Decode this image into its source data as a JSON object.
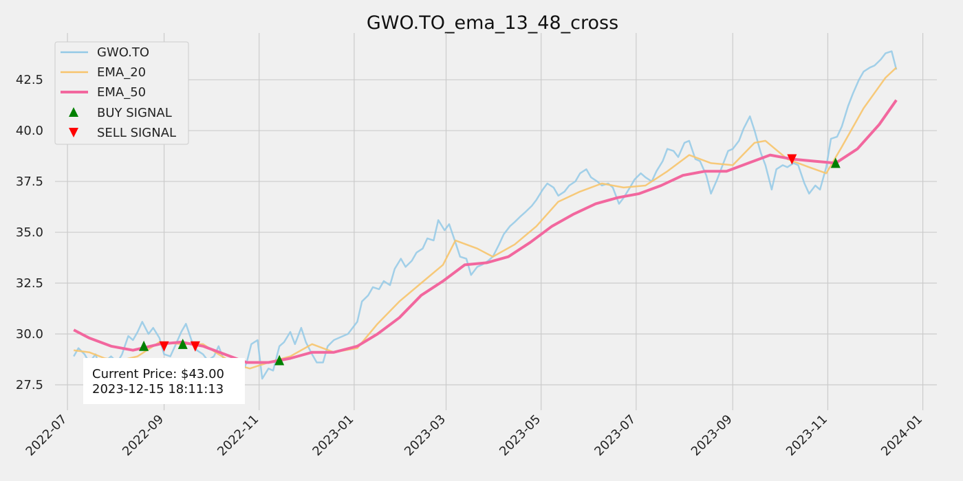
{
  "chart_data": {
    "type": "line",
    "title": "GWO.TO_ema_13_48_cross",
    "xlabel": "",
    "ylabel": "",
    "grid": true,
    "legend_position": "top-left",
    "x_ticks": [
      "2022-07",
      "2022-09",
      "2022-11",
      "2023-01",
      "2023-03",
      "2023-05",
      "2023-07",
      "2023-09",
      "2023-11",
      "2024-01"
    ],
    "y_ticks": [
      "27.5",
      "30.0",
      "32.5",
      "35.0",
      "37.5",
      "40.0",
      "42.5"
    ],
    "xlim": [
      "2022-06-23",
      "2024-01-10"
    ],
    "ylim": [
      26.25,
      44.8
    ],
    "series": [
      {
        "name": "GWO.TO",
        "color": "#93c9e6",
        "points": [
          [
            "2022-07-05",
            28.9
          ],
          [
            "2022-07-08",
            29.3
          ],
          [
            "2022-07-12",
            29.0
          ],
          [
            "2022-07-15",
            28.6
          ],
          [
            "2022-07-19",
            29.0
          ],
          [
            "2022-07-22",
            28.3
          ],
          [
            "2022-07-26",
            28.7
          ],
          [
            "2022-07-29",
            28.9
          ],
          [
            "2022-08-02",
            28.6
          ],
          [
            "2022-08-05",
            29.0
          ],
          [
            "2022-08-09",
            29.9
          ],
          [
            "2022-08-12",
            29.7
          ],
          [
            "2022-08-15",
            30.1
          ],
          [
            "2022-08-18",
            30.6
          ],
          [
            "2022-08-22",
            30.0
          ],
          [
            "2022-08-25",
            30.3
          ],
          [
            "2022-08-29",
            29.8
          ],
          [
            "2022-09-01",
            29.0
          ],
          [
            "2022-09-05",
            28.9
          ],
          [
            "2022-09-08",
            29.4
          ],
          [
            "2022-09-12",
            30.1
          ],
          [
            "2022-09-15",
            30.5
          ],
          [
            "2022-09-19",
            29.6
          ],
          [
            "2022-09-22",
            29.2
          ],
          [
            "2022-09-26",
            29.0
          ],
          [
            "2022-09-29",
            28.7
          ],
          [
            "2022-10-03",
            28.9
          ],
          [
            "2022-10-06",
            29.4
          ],
          [
            "2022-10-10",
            28.6
          ],
          [
            "2022-10-13",
            27.9
          ],
          [
            "2022-10-17",
            27.7
          ],
          [
            "2022-10-20",
            27.9
          ],
          [
            "2022-10-24",
            28.6
          ],
          [
            "2022-10-27",
            29.5
          ],
          [
            "2022-10-31",
            29.7
          ],
          [
            "2022-11-03",
            27.8
          ],
          [
            "2022-11-07",
            28.3
          ],
          [
            "2022-11-10",
            28.2
          ],
          [
            "2022-11-14",
            29.4
          ],
          [
            "2022-11-17",
            29.6
          ],
          [
            "2022-11-21",
            30.1
          ],
          [
            "2022-11-24",
            29.5
          ],
          [
            "2022-11-28",
            30.3
          ],
          [
            "2022-12-01",
            29.6
          ],
          [
            "2022-12-05",
            29.0
          ],
          [
            "2022-12-08",
            28.6
          ],
          [
            "2022-12-12",
            28.6
          ],
          [
            "2022-12-15",
            29.4
          ],
          [
            "2022-12-19",
            29.7
          ],
          [
            "2022-12-22",
            29.8
          ],
          [
            "2022-12-28",
            30.0
          ],
          [
            "2023-01-03",
            30.6
          ],
          [
            "2023-01-06",
            31.6
          ],
          [
            "2023-01-10",
            31.9
          ],
          [
            "2023-01-13",
            32.3
          ],
          [
            "2023-01-17",
            32.2
          ],
          [
            "2023-01-20",
            32.6
          ],
          [
            "2023-01-24",
            32.4
          ],
          [
            "2023-01-27",
            33.2
          ],
          [
            "2023-01-31",
            33.7
          ],
          [
            "2023-02-03",
            33.3
          ],
          [
            "2023-02-07",
            33.6
          ],
          [
            "2023-02-10",
            34.0
          ],
          [
            "2023-02-14",
            34.2
          ],
          [
            "2023-02-17",
            34.7
          ],
          [
            "2023-02-21",
            34.6
          ],
          [
            "2023-02-24",
            35.6
          ],
          [
            "2023-02-28",
            35.1
          ],
          [
            "2023-03-03",
            35.4
          ],
          [
            "2023-03-07",
            34.5
          ],
          [
            "2023-03-10",
            33.8
          ],
          [
            "2023-03-14",
            33.7
          ],
          [
            "2023-03-17",
            32.9
          ],
          [
            "2023-03-21",
            33.3
          ],
          [
            "2023-03-24",
            33.4
          ],
          [
            "2023-03-28",
            33.6
          ],
          [
            "2023-03-31",
            33.8
          ],
          [
            "2023-04-04",
            34.4
          ],
          [
            "2023-04-07",
            34.9
          ],
          [
            "2023-04-11",
            35.3
          ],
          [
            "2023-04-14",
            35.5
          ],
          [
            "2023-04-18",
            35.8
          ],
          [
            "2023-04-21",
            36.0
          ],
          [
            "2023-04-25",
            36.3
          ],
          [
            "2023-04-28",
            36.6
          ],
          [
            "2023-05-02",
            37.1
          ],
          [
            "2023-05-05",
            37.4
          ],
          [
            "2023-05-09",
            37.2
          ],
          [
            "2023-05-12",
            36.8
          ],
          [
            "2023-05-16",
            37.0
          ],
          [
            "2023-05-19",
            37.3
          ],
          [
            "2023-05-23",
            37.5
          ],
          [
            "2023-05-26",
            37.9
          ],
          [
            "2023-05-30",
            38.1
          ],
          [
            "2023-06-02",
            37.7
          ],
          [
            "2023-06-06",
            37.5
          ],
          [
            "2023-06-09",
            37.3
          ],
          [
            "2023-06-13",
            37.4
          ],
          [
            "2023-06-16",
            37.2
          ],
          [
            "2023-06-20",
            36.4
          ],
          [
            "2023-06-23",
            36.7
          ],
          [
            "2023-06-27",
            37.2
          ],
          [
            "2023-06-30",
            37.6
          ],
          [
            "2023-07-04",
            37.9
          ],
          [
            "2023-07-07",
            37.7
          ],
          [
            "2023-07-11",
            37.5
          ],
          [
            "2023-07-14",
            38.0
          ],
          [
            "2023-07-18",
            38.5
          ],
          [
            "2023-07-21",
            39.1
          ],
          [
            "2023-07-25",
            39.0
          ],
          [
            "2023-07-28",
            38.7
          ],
          [
            "2023-08-01",
            39.4
          ],
          [
            "2023-08-04",
            39.5
          ],
          [
            "2023-08-08",
            38.6
          ],
          [
            "2023-08-11",
            38.5
          ],
          [
            "2023-08-15",
            37.8
          ],
          [
            "2023-08-18",
            36.9
          ],
          [
            "2023-08-22",
            37.6
          ],
          [
            "2023-08-25",
            38.2
          ],
          [
            "2023-08-29",
            39.0
          ],
          [
            "2023-09-01",
            39.1
          ],
          [
            "2023-09-05",
            39.5
          ],
          [
            "2023-09-08",
            40.1
          ],
          [
            "2023-09-12",
            40.7
          ],
          [
            "2023-09-15",
            40.0
          ],
          [
            "2023-09-19",
            38.9
          ],
          [
            "2023-09-22",
            38.3
          ],
          [
            "2023-09-26",
            37.1
          ],
          [
            "2023-09-29",
            38.1
          ],
          [
            "2023-10-03",
            38.3
          ],
          [
            "2023-10-06",
            38.2
          ],
          [
            "2023-10-10",
            38.4
          ],
          [
            "2023-10-13",
            38.3
          ],
          [
            "2023-10-17",
            37.4
          ],
          [
            "2023-10-20",
            36.9
          ],
          [
            "2023-10-24",
            37.3
          ],
          [
            "2023-10-27",
            37.1
          ],
          [
            "2023-10-31",
            38.2
          ],
          [
            "2023-11-03",
            39.6
          ],
          [
            "2023-11-07",
            39.7
          ],
          [
            "2023-11-10",
            40.2
          ],
          [
            "2023-11-14",
            41.2
          ],
          [
            "2023-11-17",
            41.8
          ],
          [
            "2023-11-21",
            42.5
          ],
          [
            "2023-11-24",
            42.9
          ],
          [
            "2023-11-28",
            43.1
          ],
          [
            "2023-12-01",
            43.2
          ],
          [
            "2023-12-05",
            43.5
          ],
          [
            "2023-12-08",
            43.8
          ],
          [
            "2023-12-12",
            43.9
          ],
          [
            "2023-12-15",
            43.0
          ]
        ]
      },
      {
        "name": "EMA_20",
        "color": "#f7c46c",
        "points": [
          [
            "2022-07-05",
            29.2
          ],
          [
            "2022-07-15",
            29.1
          ],
          [
            "2022-07-25",
            28.8
          ],
          [
            "2022-08-04",
            28.7
          ],
          [
            "2022-08-15",
            28.9
          ],
          [
            "2022-08-29",
            29.6
          ],
          [
            "2022-09-12",
            29.5
          ],
          [
            "2022-09-26",
            29.5
          ],
          [
            "2022-10-06",
            29.0
          ],
          [
            "2022-10-17",
            28.5
          ],
          [
            "2022-10-26",
            28.3
          ],
          [
            "2022-11-07",
            28.6
          ],
          [
            "2022-11-21",
            28.9
          ],
          [
            "2022-12-05",
            29.5
          ],
          [
            "2022-12-19",
            29.1
          ],
          [
            "2023-01-03",
            29.3
          ],
          [
            "2023-01-16",
            30.5
          ],
          [
            "2023-01-30",
            31.6
          ],
          [
            "2023-02-13",
            32.5
          ],
          [
            "2023-02-27",
            33.4
          ],
          [
            "2023-03-07",
            34.6
          ],
          [
            "2023-03-21",
            34.2
          ],
          [
            "2023-03-31",
            33.8
          ],
          [
            "2023-04-14",
            34.4
          ],
          [
            "2023-04-28",
            35.3
          ],
          [
            "2023-05-12",
            36.5
          ],
          [
            "2023-05-26",
            37.0
          ],
          [
            "2023-06-09",
            37.4
          ],
          [
            "2023-06-23",
            37.2
          ],
          [
            "2023-07-07",
            37.3
          ],
          [
            "2023-07-21",
            38.0
          ],
          [
            "2023-08-04",
            38.8
          ],
          [
            "2023-08-18",
            38.4
          ],
          [
            "2023-09-01",
            38.3
          ],
          [
            "2023-09-15",
            39.4
          ],
          [
            "2023-09-22",
            39.5
          ],
          [
            "2023-10-06",
            38.6
          ],
          [
            "2023-10-20",
            38.2
          ],
          [
            "2023-10-31",
            37.9
          ],
          [
            "2023-11-10",
            39.2
          ],
          [
            "2023-11-24",
            41.1
          ],
          [
            "2023-12-08",
            42.6
          ],
          [
            "2023-12-15",
            43.1
          ]
        ]
      },
      {
        "name": "EMA_50",
        "color": "#f2679e",
        "points": [
          [
            "2022-07-05",
            30.2
          ],
          [
            "2022-07-15",
            29.8
          ],
          [
            "2022-07-29",
            29.4
          ],
          [
            "2022-08-12",
            29.2
          ],
          [
            "2022-08-29",
            29.5
          ],
          [
            "2022-09-12",
            29.6
          ],
          [
            "2022-09-26",
            29.4
          ],
          [
            "2022-10-10",
            29.0
          ],
          [
            "2022-10-24",
            28.6
          ],
          [
            "2022-11-07",
            28.6
          ],
          [
            "2022-11-21",
            28.8
          ],
          [
            "2022-12-05",
            29.1
          ],
          [
            "2022-12-19",
            29.1
          ],
          [
            "2023-01-03",
            29.4
          ],
          [
            "2023-01-16",
            30.0
          ],
          [
            "2023-01-30",
            30.8
          ],
          [
            "2023-02-13",
            31.9
          ],
          [
            "2023-02-27",
            32.6
          ],
          [
            "2023-03-13",
            33.4
          ],
          [
            "2023-03-27",
            33.5
          ],
          [
            "2023-04-10",
            33.8
          ],
          [
            "2023-04-24",
            34.5
          ],
          [
            "2023-05-08",
            35.3
          ],
          [
            "2023-05-22",
            35.9
          ],
          [
            "2023-06-05",
            36.4
          ],
          [
            "2023-06-19",
            36.7
          ],
          [
            "2023-07-03",
            36.9
          ],
          [
            "2023-07-17",
            37.3
          ],
          [
            "2023-07-31",
            37.8
          ],
          [
            "2023-08-14",
            38.0
          ],
          [
            "2023-08-28",
            38.0
          ],
          [
            "2023-09-11",
            38.4
          ],
          [
            "2023-09-25",
            38.8
          ],
          [
            "2023-10-09",
            38.6
          ],
          [
            "2023-10-23",
            38.5
          ],
          [
            "2023-11-06",
            38.4
          ],
          [
            "2023-11-20",
            39.1
          ],
          [
            "2023-12-04",
            40.3
          ],
          [
            "2023-12-15",
            41.5
          ]
        ]
      }
    ],
    "buy_signals": {
      "name": "BUY SIGNAL",
      "color": "#008000",
      "points": [
        [
          "2022-08-19",
          29.4
        ],
        [
          "2022-09-13",
          29.5
        ],
        [
          "2022-11-14",
          28.7
        ],
        [
          "2023-11-06",
          38.4
        ]
      ]
    },
    "sell_signals": {
      "name": "SELL SIGNAL",
      "color": "#ff0000",
      "points": [
        [
          "2022-09-01",
          29.4
        ],
        [
          "2022-09-21",
          29.4
        ],
        [
          "2023-10-09",
          38.6
        ]
      ]
    }
  },
  "info_box": {
    "line1": "Current Price: $43.00",
    "line2": "2023-12-15 18:11:13"
  }
}
